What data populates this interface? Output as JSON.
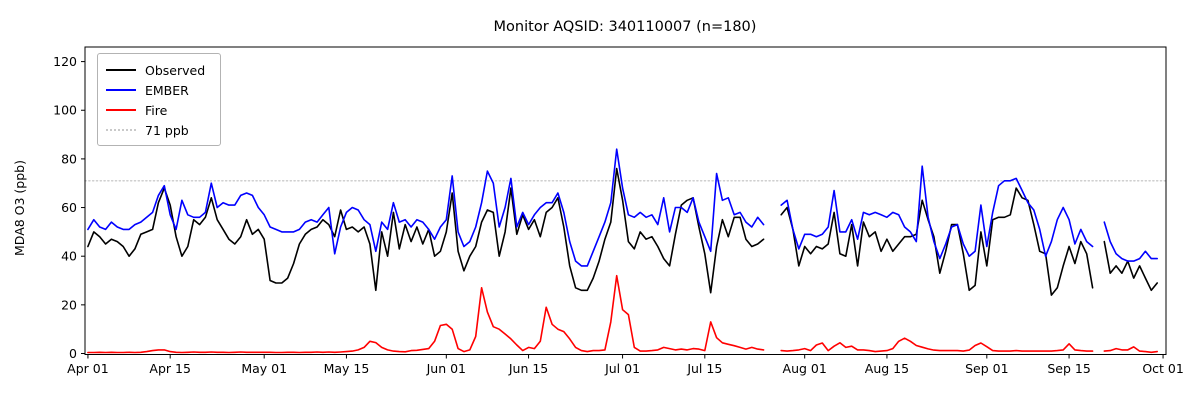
{
  "chart_data": {
    "type": "line",
    "title": "Monitor AQSID: 340110007 (n=180)",
    "ylabel": "MDA8 O3 (ppb)",
    "xlabel": "",
    "ylim": [
      0,
      126
    ],
    "yticks": [
      0,
      20,
      40,
      60,
      80,
      100,
      120
    ],
    "x_tick_labels": [
      "Apr 01",
      "Apr 15",
      "May 01",
      "May 15",
      "Jun 01",
      "Jun 15",
      "Jul 01",
      "Jul 15",
      "Aug 01",
      "Aug 15",
      "Sep 01",
      "Sep 15",
      "Oct 01"
    ],
    "x_tick_days": [
      0,
      14,
      30,
      44,
      61,
      75,
      91,
      105,
      122,
      136,
      153,
      167,
      183
    ],
    "x_range_days": 183,
    "grid": "off",
    "legend_position": "upper left",
    "threshold": {
      "value": 71,
      "label": "71 ppb",
      "color": "#c9c9c9",
      "style": "dotted"
    },
    "legend": [
      {
        "label": "Observed",
        "color": "#000000",
        "style": "solid"
      },
      {
        "label": "EMBER",
        "color": "#0000ff",
        "style": "solid"
      },
      {
        "label": "Fire",
        "color": "#ff0000",
        "style": "solid"
      },
      {
        "label": "71 ppb",
        "color": "#c9c9c9",
        "style": "dotted"
      }
    ],
    "missing_dates": [
      "Jul 26",
      "Jul 27",
      "Sep 20"
    ],
    "series": [
      {
        "name": "Observed",
        "color": "#000000",
        "values": [
          44,
          50,
          48,
          45,
          47,
          46,
          44,
          40,
          43,
          49,
          50,
          51,
          62,
          68,
          61,
          48,
          40,
          44,
          55,
          53,
          56,
          64,
          55,
          51,
          47,
          45,
          48,
          55,
          49,
          51,
          47,
          30,
          29,
          29,
          31,
          37,
          45,
          49,
          51,
          52,
          55,
          53,
          48,
          59,
          51,
          52,
          50,
          52,
          45,
          26,
          50,
          40,
          58,
          43,
          53,
          46,
          52,
          45,
          51,
          40,
          42,
          50,
          66,
          42,
          34,
          40,
          44,
          54,
          59,
          58,
          40,
          50,
          68,
          49,
          57,
          51,
          55,
          48,
          58,
          60,
          64,
          52,
          36,
          27,
          26,
          26,
          31,
          38,
          47,
          54,
          76,
          63,
          46,
          43,
          50,
          47,
          48,
          44,
          39,
          36,
          49,
          61,
          63,
          64,
          52,
          41,
          25,
          44,
          55,
          48,
          56,
          56,
          47,
          44,
          45,
          47,
          null,
          null,
          57,
          60,
          51,
          36,
          44,
          41,
          44,
          43,
          45,
          58,
          41,
          40,
          53,
          36,
          54,
          48,
          50,
          42,
          47,
          42,
          45,
          48,
          48,
          49,
          63,
          55,
          48,
          33,
          42,
          53,
          53,
          41,
          26,
          28,
          50,
          36,
          55,
          56,
          56,
          57,
          68,
          64,
          63,
          53,
          42,
          41,
          24,
          27,
          36,
          44,
          37,
          46,
          41,
          27,
          null,
          46,
          33,
          36,
          33,
          38,
          31,
          36,
          31,
          26,
          29
        ]
      },
      {
        "name": "EMBER",
        "color": "#0000ff",
        "values": [
          51,
          55,
          52,
          51,
          54,
          52,
          51,
          51,
          53,
          54,
          56,
          58,
          65,
          69,
          57,
          51,
          63,
          57,
          56,
          56,
          58,
          70,
          60,
          62,
          61,
          61,
          65,
          66,
          65,
          60,
          57,
          52,
          51,
          50,
          50,
          50,
          51,
          54,
          55,
          54,
          57,
          60,
          41,
          52,
          58,
          60,
          59,
          55,
          53,
          42,
          54,
          51,
          62,
          54,
          55,
          52,
          55,
          54,
          51,
          47,
          52,
          55,
          73,
          50,
          44,
          46,
          52,
          62,
          75,
          70,
          52,
          60,
          72,
          52,
          58,
          53,
          57,
          60,
          62,
          62,
          66,
          58,
          46,
          38,
          36,
          36,
          42,
          48,
          54,
          62,
          84,
          68,
          57,
          56,
          58,
          56,
          57,
          53,
          64,
          50,
          60,
          60,
          58,
          64,
          54,
          48,
          42,
          74,
          63,
          64,
          57,
          58,
          54,
          52,
          56,
          53,
          null,
          null,
          61,
          63,
          51,
          43,
          49,
          49,
          48,
          49,
          52,
          67,
          50,
          50,
          55,
          47,
          58,
          57,
          58,
          57,
          56,
          58,
          57,
          52,
          50,
          46,
          77,
          56,
          46,
          39,
          45,
          52,
          53,
          45,
          40,
          42,
          61,
          44,
          58,
          69,
          71,
          71,
          72,
          67,
          62,
          59,
          51,
          40,
          46,
          55,
          60,
          55,
          45,
          51,
          46,
          44,
          null,
          54,
          46,
          41,
          39,
          38,
          38,
          39,
          42,
          39,
          39
        ]
      },
      {
        "name": "Fire",
        "color": "#ff0000",
        "values": [
          0.4,
          0.4,
          0.5,
          0.4,
          0.5,
          0.4,
          0.4,
          0.5,
          0.4,
          0.5,
          0.8,
          1.2,
          1.5,
          1.5,
          0.8,
          0.5,
          0.4,
          0.5,
          0.6,
          0.5,
          0.5,
          0.6,
          0.5,
          0.5,
          0.4,
          0.5,
          0.6,
          0.5,
          0.5,
          0.5,
          0.5,
          0.5,
          0.4,
          0.4,
          0.5,
          0.5,
          0.4,
          0.5,
          0.5,
          0.6,
          0.5,
          0.6,
          0.5,
          0.6,
          0.8,
          1.0,
          1.5,
          2.5,
          5,
          4.5,
          2.5,
          1.5,
          1,
          0.8,
          0.7,
          1.2,
          1.3,
          1.7,
          2,
          5,
          11.5,
          12,
          10,
          2,
          0.8,
          1.5,
          7,
          27,
          17,
          11,
          10,
          8,
          6,
          3.5,
          1.2,
          2.5,
          2,
          5,
          19,
          12,
          10,
          9,
          6,
          2.5,
          1.2,
          0.8,
          1.2,
          1.2,
          1.5,
          13,
          32,
          18,
          16,
          2.5,
          1,
          1,
          1.2,
          1.5,
          2.5,
          2,
          1.5,
          1.8,
          1.5,
          2,
          1.8,
          1.2,
          13,
          6.5,
          4.4,
          3.8,
          3.2,
          2.5,
          1.8,
          2.5,
          1.8,
          1.5,
          null,
          null,
          1.2,
          1,
          1.2,
          1.5,
          2,
          1.2,
          3.5,
          4.3,
          1.2,
          3,
          4.4,
          2.5,
          3,
          1.5,
          1.5,
          1.2,
          0.8,
          1,
          1.2,
          2,
          5,
          6.3,
          5,
          3.3,
          2.6,
          1.9,
          1.4,
          1.2,
          1.2,
          1.2,
          1.2,
          1,
          1.4,
          3.3,
          4.3,
          2.8,
          1.2,
          1,
          1,
          1,
          1.2,
          1,
          1,
          1,
          1,
          1,
          1,
          1.2,
          1.5,
          4,
          1.5,
          1.2,
          1,
          1,
          null,
          1,
          1.2,
          2,
          1.5,
          1.5,
          2.7,
          1,
          0.8,
          0.5,
          0.8
        ]
      }
    ]
  }
}
